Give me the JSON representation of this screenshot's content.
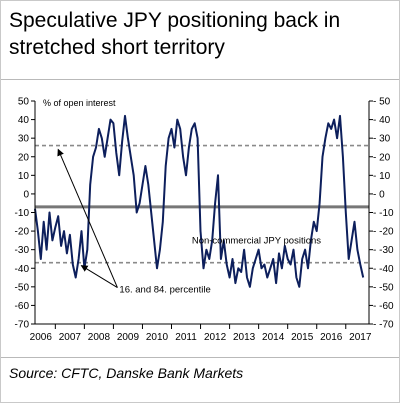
{
  "title": "Speculative JPY positioning back in stretched short territory",
  "source": "Source: CFTC, Danske Bank Markets",
  "colors": {
    "series": "#0d1f5c",
    "mean_line": "#777777",
    "percentile_line": "#8a8a8a",
    "axis": "#000000"
  },
  "chart_data": {
    "type": "line",
    "ylabel": "% of open interest",
    "ylim": [
      -70,
      50
    ],
    "yticks": [
      50,
      40,
      30,
      20,
      10,
      0,
      -10,
      -20,
      -30,
      -40,
      -50,
      -60,
      -70
    ],
    "xlim": [
      2005.8,
      2017.3
    ],
    "xticks": [
      2006,
      2007,
      2008,
      2009,
      2010,
      2011,
      2012,
      2013,
      2014,
      2015,
      2016,
      2017
    ],
    "grid": false,
    "reference_lines": {
      "mean": -7,
      "percentile_16": -37,
      "percentile_84": 26
    },
    "annotations": [
      {
        "text": "Non-commercial JPY positions",
        "x": 2011.2,
        "y": -25
      },
      {
        "text": "16. and 84. percentile",
        "x": 2008.5,
        "y": -52
      }
    ],
    "series": [
      {
        "x": [
          2005.8,
          2005.9,
          2006.0,
          2006.1,
          2006.2,
          2006.3,
          2006.4,
          2006.5,
          2006.6,
          2006.7,
          2006.8,
          2006.9,
          2007.0,
          2007.1,
          2007.2,
          2007.3,
          2007.4,
          2007.5,
          2007.6,
          2007.7,
          2007.8,
          2007.9,
          2008.0,
          2008.1,
          2008.2,
          2008.3,
          2008.4,
          2008.5,
          2008.6,
          2008.7,
          2008.8,
          2008.9,
          2009.0,
          2009.1,
          2009.2,
          2009.3,
          2009.4,
          2009.5,
          2009.6,
          2009.7,
          2009.8,
          2009.9,
          2010.0,
          2010.1,
          2010.2,
          2010.3,
          2010.4,
          2010.5,
          2010.6,
          2010.7,
          2010.8,
          2010.9,
          2011.0,
          2011.1,
          2011.2,
          2011.3,
          2011.4,
          2011.5,
          2011.6,
          2011.7,
          2011.8,
          2011.9,
          2012.0,
          2012.1,
          2012.2,
          2012.3,
          2012.4,
          2012.5,
          2012.6,
          2012.7,
          2012.8,
          2012.9,
          2013.0,
          2013.1,
          2013.2,
          2013.3,
          2013.4,
          2013.5,
          2013.6,
          2013.7,
          2013.8,
          2013.9,
          2014.0,
          2014.1,
          2014.2,
          2014.3,
          2014.4,
          2014.5,
          2014.6,
          2014.7,
          2014.8,
          2014.9,
          2015.0,
          2015.1,
          2015.2,
          2015.3,
          2015.4,
          2015.5,
          2015.6,
          2015.7,
          2015.8,
          2015.9,
          2016.0,
          2016.1,
          2016.2,
          2016.3,
          2016.4,
          2016.5,
          2016.6,
          2016.7,
          2016.8,
          2016.9,
          2017.0,
          2017.1
        ],
        "values": [
          -8,
          -20,
          -35,
          -15,
          -30,
          -10,
          -25,
          -18,
          -12,
          -28,
          -20,
          -32,
          -22,
          -38,
          -45,
          -35,
          -20,
          -40,
          -30,
          5,
          20,
          25,
          35,
          30,
          20,
          30,
          40,
          38,
          22,
          10,
          28,
          42,
          30,
          20,
          10,
          -10,
          -5,
          5,
          15,
          5,
          -10,
          -25,
          -40,
          -30,
          -15,
          15,
          30,
          35,
          25,
          40,
          35,
          20,
          10,
          25,
          35,
          38,
          30,
          -20,
          -40,
          -30,
          -35,
          -25,
          -5,
          10,
          -35,
          -25,
          -38,
          -45,
          -35,
          -48,
          -40,
          -42,
          -30,
          -45,
          -50,
          -40,
          -35,
          -30,
          -40,
          -38,
          -45,
          -40,
          -35,
          -48,
          -32,
          -40,
          -28,
          -35,
          -38,
          -30,
          -45,
          -50,
          -35,
          -30,
          -40,
          -25,
          -15,
          -20,
          -5,
          20,
          30,
          38,
          35,
          40,
          30,
          42,
          20,
          -10,
          -35,
          -25,
          -15,
          -30,
          -38,
          -45
        ]
      }
    ]
  }
}
